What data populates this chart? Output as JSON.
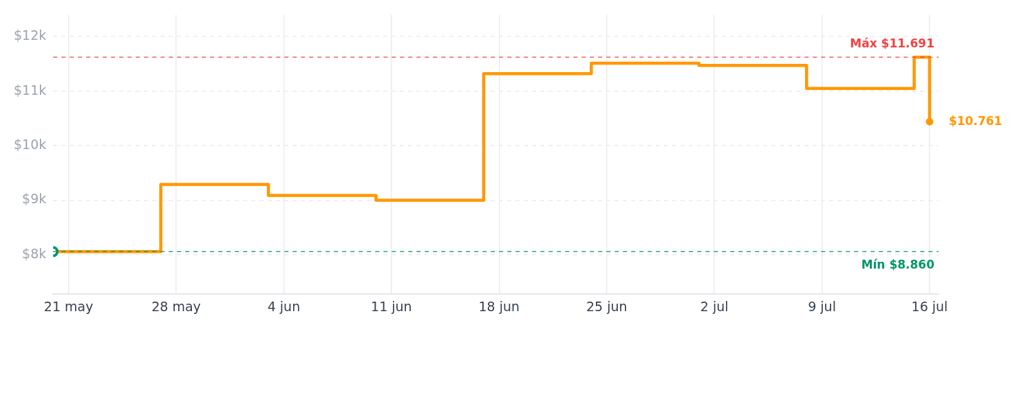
{
  "chart_data": {
    "type": "step",
    "x": [
      "--05-20",
      "--05-27",
      "--06-03",
      "--06-10",
      "--06-17",
      "--06-24",
      "--07-01",
      "--07-08",
      "--07-15",
      "--07-16"
    ],
    "series": [
      {
        "color": "#ff9800",
        "values": [
          8.06,
          9.29,
          9.09,
          9.0,
          11.32,
          11.51,
          11.47,
          11.05,
          11.62,
          10.44
        ]
      }
    ],
    "xlim": [
      "--05-20",
      "--07-16T14:00"
    ],
    "xticks": [
      {
        "value": "--05-21",
        "label": "21 may"
      },
      {
        "value": "--05-28",
        "label": "28 may"
      },
      {
        "value": "--06-04",
        "label": "4 jun"
      },
      {
        "value": "--06-11",
        "label": "11 jun"
      },
      {
        "value": "--06-18",
        "label": "18 jun"
      },
      {
        "value": "--06-25",
        "label": "25 jun"
      },
      {
        "value": "--07-02",
        "label": "2 jul"
      },
      {
        "value": "--07-09",
        "label": "9 jul"
      },
      {
        "value": "--07-16",
        "label": "16 jul"
      }
    ],
    "ylim": [
      7.28,
      12.4
    ],
    "yticks": [
      {
        "value": 8,
        "label": "$8k"
      },
      {
        "value": 9,
        "label": "$9k"
      },
      {
        "value": 10,
        "label": "$10k"
      },
      {
        "value": 11,
        "label": "$11k"
      },
      {
        "value": 12,
        "label": "$12k"
      }
    ],
    "ref_lines": [
      {
        "axis": "y",
        "value": 11.62,
        "label": "Máx $11.691",
        "color": "#ef4444",
        "line_style": "dashed"
      },
      {
        "axis": "y",
        "value": 8.06,
        "label": "Mín $8.860",
        "color": "#059669",
        "line_style": "dashed"
      }
    ],
    "annotations": [
      {
        "text": "$10.761",
        "x": "--07-16",
        "y": 10.44
      }
    ],
    "grid": true,
    "line_style": "solid",
    "legend": false
  }
}
